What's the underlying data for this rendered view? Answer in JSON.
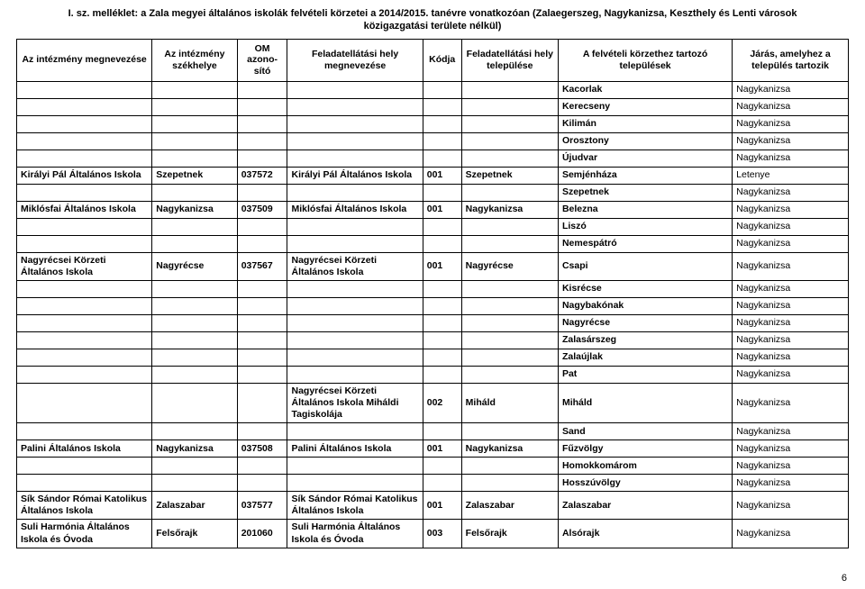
{
  "doc_title": "I. sz. melléklet: a Zala megyei általános iskolák felvételi körzetei a 2014/2015. tanévre vonatkozóan (Zalaegerszeg, Nagykanizsa, Keszthely és Lenti városok\nközigazgatási területe nélkül)",
  "page_number": "6",
  "columns": [
    "Az intézmény megnevezése",
    "Az intézmény székhelye",
    "OM azono-sító",
    "Feladatellátási hely megnevezése",
    "Kódja",
    "Feladatellátási hely települése",
    "A felvételi körzethez tartozó települések",
    "Járás, amelyhez a település tartozik"
  ],
  "rows": [
    {
      "c1": "",
      "c2": "",
      "c3": "",
      "c4": "",
      "c5": "",
      "c6": "",
      "c7": "Kacorlak",
      "c8": "Nagykanizsa",
      "bold": [
        "c7"
      ]
    },
    {
      "c1": "",
      "c2": "",
      "c3": "",
      "c4": "",
      "c5": "",
      "c6": "",
      "c7": "Kerecseny",
      "c8": "Nagykanizsa",
      "bold": [
        "c7"
      ]
    },
    {
      "c1": "",
      "c2": "",
      "c3": "",
      "c4": "",
      "c5": "",
      "c6": "",
      "c7": "Kilimán",
      "c8": "Nagykanizsa",
      "bold": [
        "c7"
      ]
    },
    {
      "c1": "",
      "c2": "",
      "c3": "",
      "c4": "",
      "c5": "",
      "c6": "",
      "c7": "Orosztony",
      "c8": "Nagykanizsa",
      "bold": [
        "c7"
      ]
    },
    {
      "c1": "",
      "c2": "",
      "c3": "",
      "c4": "",
      "c5": "",
      "c6": "",
      "c7": "Újudvar",
      "c8": "Nagykanizsa",
      "bold": [
        "c7"
      ]
    },
    {
      "c1": "Királyi Pál Általános Iskola",
      "c2": "Szepetnek",
      "c3": "037572",
      "c4": "Királyi Pál Általános Iskola",
      "c5": "001",
      "c6": "Szepetnek",
      "c7": "Semjénháza",
      "c8": "Letenye",
      "bold": [
        "c1",
        "c2",
        "c3",
        "c4",
        "c5",
        "c6",
        "c7"
      ]
    },
    {
      "c1": "",
      "c2": "",
      "c3": "",
      "c4": "",
      "c5": "",
      "c6": "",
      "c7": "Szepetnek",
      "c8": "Nagykanizsa",
      "bold": [
        "c7"
      ]
    },
    {
      "c1": "Miklósfai Általános Iskola",
      "c2": "Nagykanizsa",
      "c3": "037509",
      "c4": "Miklósfai Általános Iskola",
      "c5": "001",
      "c6": "Nagykanizsa",
      "c7": "Belezna",
      "c8": "Nagykanizsa",
      "bold": [
        "c1",
        "c2",
        "c3",
        "c4",
        "c5",
        "c6",
        "c7"
      ]
    },
    {
      "c1": "",
      "c2": "",
      "c3": "",
      "c4": "",
      "c5": "",
      "c6": "",
      "c7": "Liszó",
      "c8": "Nagykanizsa",
      "bold": [
        "c7"
      ]
    },
    {
      "c1": "",
      "c2": "",
      "c3": "",
      "c4": "",
      "c5": "",
      "c6": "",
      "c7": "Nemespátró",
      "c8": "Nagykanizsa",
      "bold": [
        "c7"
      ]
    },
    {
      "c1": "Nagyrécsei Körzeti Általános Iskola",
      "c2": "Nagyrécse",
      "c3": "037567",
      "c4": "Nagyrécsei Körzeti Általános Iskola",
      "c5": "001",
      "c6": "Nagyrécse",
      "c7": "Csapi",
      "c8": "Nagykanizsa",
      "bold": [
        "c1",
        "c2",
        "c3",
        "c4",
        "c5",
        "c6",
        "c7"
      ]
    },
    {
      "c1": "",
      "c2": "",
      "c3": "",
      "c4": "",
      "c5": "",
      "c6": "",
      "c7": "Kisrécse",
      "c8": "Nagykanizsa",
      "bold": [
        "c7"
      ]
    },
    {
      "c1": "",
      "c2": "",
      "c3": "",
      "c4": "",
      "c5": "",
      "c6": "",
      "c7": "Nagybakónak",
      "c8": "Nagykanizsa",
      "bold": [
        "c7"
      ]
    },
    {
      "c1": "",
      "c2": "",
      "c3": "",
      "c4": "",
      "c5": "",
      "c6": "",
      "c7": "Nagyrécse",
      "c8": "Nagykanizsa",
      "bold": [
        "c7"
      ]
    },
    {
      "c1": "",
      "c2": "",
      "c3": "",
      "c4": "",
      "c5": "",
      "c6": "",
      "c7": "Zalasárszeg",
      "c8": "Nagykanizsa",
      "bold": [
        "c7"
      ]
    },
    {
      "c1": "",
      "c2": "",
      "c3": "",
      "c4": "",
      "c5": "",
      "c6": "",
      "c7": "Zalaújlak",
      "c8": "Nagykanizsa",
      "bold": [
        "c7"
      ]
    },
    {
      "c1": "",
      "c2": "",
      "c3": "",
      "c4": "",
      "c5": "",
      "c6": "",
      "c7": "Pat",
      "c8": "Nagykanizsa",
      "bold": [
        "c7"
      ]
    },
    {
      "c1": "",
      "c2": "",
      "c3": "",
      "c4": "Nagyrécsei Körzeti Általános Iskola Miháldi Tagiskolája",
      "c5": "002",
      "c6": "Miháld",
      "c7": "Miháld",
      "c8": "Nagykanizsa",
      "bold": [
        "c4",
        "c5",
        "c6",
        "c7"
      ]
    },
    {
      "c1": "",
      "c2": "",
      "c3": "",
      "c4": "",
      "c5": "",
      "c6": "",
      "c7": "Sand",
      "c8": "Nagykanizsa",
      "bold": [
        "c7"
      ]
    },
    {
      "c1": "Palini Általános Iskola",
      "c2": "Nagykanizsa",
      "c3": "037508",
      "c4": "Palini Általános Iskola",
      "c5": "001",
      "c6": "Nagykanizsa",
      "c7": "Fűzvölgy",
      "c8": "Nagykanizsa",
      "bold": [
        "c1",
        "c2",
        "c3",
        "c4",
        "c5",
        "c6",
        "c7"
      ]
    },
    {
      "c1": "",
      "c2": "",
      "c3": "",
      "c4": "",
      "c5": "",
      "c6": "",
      "c7": "Homokkomárom",
      "c8": "Nagykanizsa",
      "bold": [
        "c7"
      ]
    },
    {
      "c1": "",
      "c2": "",
      "c3": "",
      "c4": "",
      "c5": "",
      "c6": "",
      "c7": "Hosszúvölgy",
      "c8": "Nagykanizsa",
      "bold": [
        "c7"
      ]
    },
    {
      "c1": "Sík Sándor Római Katolikus Általános Iskola",
      "c2": "Zalaszabar",
      "c3": "037577",
      "c4": "Sík Sándor Római Katolikus Általános Iskola",
      "c5": "001",
      "c6": "Zalaszabar",
      "c7": "Zalaszabar",
      "c8": "Nagykanizsa",
      "bold": [
        "c1",
        "c2",
        "c3",
        "c4",
        "c5",
        "c6",
        "c7"
      ]
    },
    {
      "c1": "Suli Harmónia Általános Iskola és Óvoda",
      "c2": "Felsőrajk",
      "c3": "201060",
      "c4": "Suli Harmónia Általános Iskola és Óvoda",
      "c5": "003",
      "c6": "Felsőrajk",
      "c7": "Alsórajk",
      "c8": "Nagykanizsa",
      "bold": [
        "c1",
        "c2",
        "c3",
        "c4",
        "c5",
        "c6",
        "c7"
      ]
    }
  ]
}
